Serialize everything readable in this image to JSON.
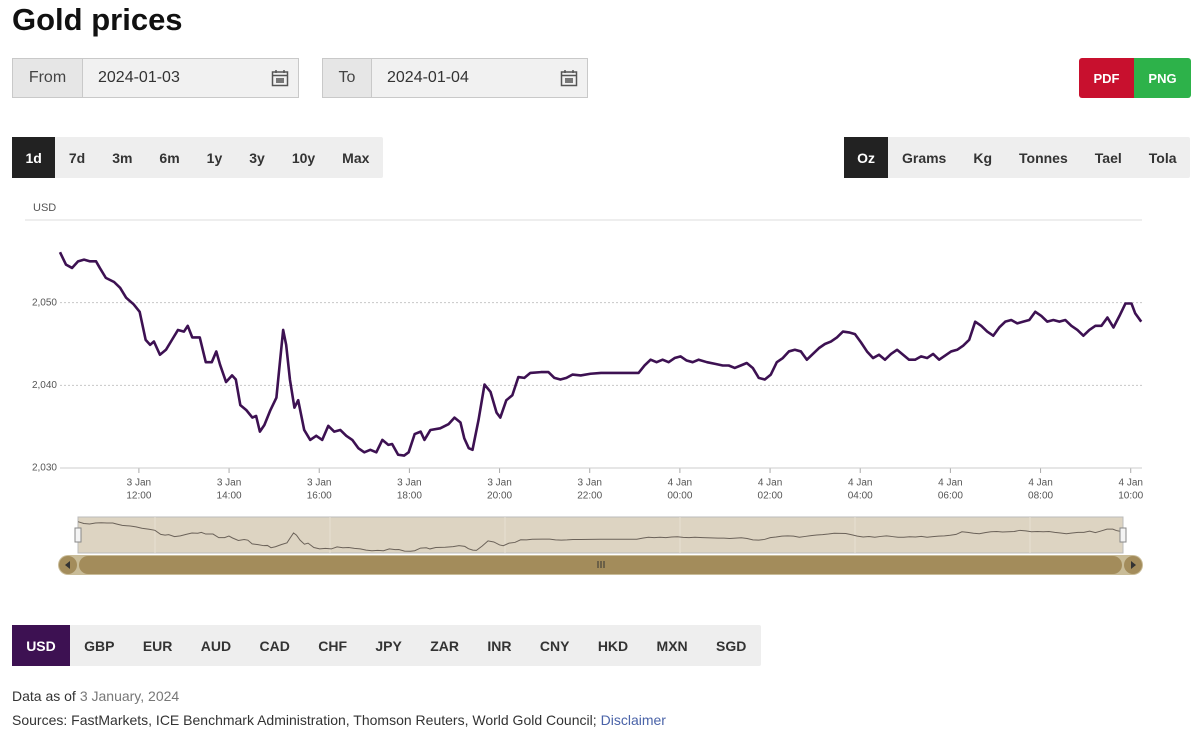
{
  "header": {
    "title": "Gold prices"
  },
  "date_range": {
    "from_label": "From",
    "from_value": "2024-01-03",
    "to_label": "To",
    "to_value": "2024-01-04"
  },
  "export_buttons": [
    "PDF",
    "PNG"
  ],
  "period_tabs": {
    "items": [
      "1d",
      "7d",
      "3m",
      "6m",
      "1y",
      "3y",
      "10y",
      "Max"
    ],
    "active": 0
  },
  "unit_tabs": {
    "items": [
      "Oz",
      "Grams",
      "Kg",
      "Tonnes",
      "Tael",
      "Tola"
    ],
    "active": 0
  },
  "currency_tabs": {
    "items": [
      "USD",
      "GBP",
      "EUR",
      "AUD",
      "CAD",
      "CHF",
      "JPY",
      "ZAR",
      "INR",
      "CNY",
      "HKD",
      "MXN",
      "SGD"
    ],
    "active": 0
  },
  "chart_data": {
    "type": "line",
    "y_label": "USD",
    "color": "#3d1152",
    "grid": true,
    "xlim": [
      "3 Jan 10:15",
      "4 Jan 10:15"
    ],
    "xticks": [
      {
        "value": "3 Jan 12:00",
        "label": [
          "3 Jan",
          "12:00"
        ]
      },
      {
        "value": "3 Jan 14:00",
        "label": [
          "3 Jan",
          "14:00"
        ]
      },
      {
        "value": "3 Jan 16:00",
        "label": [
          "3 Jan",
          "16:00"
        ]
      },
      {
        "value": "3 Jan 18:00",
        "label": [
          "3 Jan",
          "18:00"
        ]
      },
      {
        "value": "3 Jan 20:00",
        "label": [
          "3 Jan",
          "20:00"
        ]
      },
      {
        "value": "3 Jan 22:00",
        "label": [
          "3 Jan",
          "22:00"
        ]
      },
      {
        "value": "4 Jan 00:00",
        "label": [
          "4 Jan",
          "00:00"
        ]
      },
      {
        "value": "4 Jan 02:00",
        "label": [
          "4 Jan",
          "02:00"
        ]
      },
      {
        "value": "4 Jan 04:00",
        "label": [
          "4 Jan",
          "04:00"
        ]
      },
      {
        "value": "4 Jan 06:00",
        "label": [
          "4 Jan",
          "06:00"
        ]
      },
      {
        "value": "4 Jan 08:00",
        "label": [
          "4 Jan",
          "08:00"
        ]
      },
      {
        "value": "4 Jan 10:00",
        "label": [
          "4 Jan",
          "10:00"
        ]
      }
    ],
    "ylim": [
      2030,
      2060
    ],
    "yticks": [
      {
        "value": 2030,
        "label": "2,030"
      },
      {
        "value": 2040,
        "label": "2,040"
      },
      {
        "value": 2050,
        "label": "2,050"
      }
    ],
    "x": [
      "3 Jan 10:15",
      "3 Jan 10:23",
      "3 Jan 10:31",
      "3 Jan 10:39",
      "3 Jan 10:47",
      "3 Jan 10:55",
      "3 Jan 11:03",
      "3 Jan 11:08",
      "3 Jan 11:16",
      "3 Jan 11:27",
      "3 Jan 11:35",
      "3 Jan 11:43",
      "3 Jan 11:53",
      "3 Jan 12:01",
      "3 Jan 12:09",
      "3 Jan 12:15",
      "3 Jan 12:20",
      "3 Jan 12:28",
      "3 Jan 12:36",
      "3 Jan 12:44",
      "3 Jan 12:52",
      "3 Jan 13:00",
      "3 Jan 13:05",
      "3 Jan 13:11",
      "3 Jan 13:21",
      "3 Jan 13:29",
      "3 Jan 13:37",
      "3 Jan 13:43",
      "3 Jan 13:48",
      "3 Jan 13:56",
      "3 Jan 14:04",
      "3 Jan 14:09",
      "3 Jan 14:15",
      "3 Jan 14:23",
      "3 Jan 14:31",
      "3 Jan 14:36",
      "3 Jan 14:41",
      "3 Jan 14:47",
      "3 Jan 14:55",
      "3 Jan 15:03",
      "3 Jan 15:08",
      "3 Jan 15:12",
      "3 Jan 15:16",
      "3 Jan 15:21",
      "3 Jan 15:27",
      "3 Jan 15:32",
      "3 Jan 15:40",
      "3 Jan 15:48",
      "3 Jan 15:56",
      "3 Jan 16:04",
      "3 Jan 16:12",
      "3 Jan 16:20",
      "3 Jan 16:28",
      "3 Jan 16:36",
      "3 Jan 16:44",
      "3 Jan 16:52",
      "3 Jan 17:00",
      "3 Jan 17:08",
      "3 Jan 17:16",
      "3 Jan 17:24",
      "3 Jan 17:32",
      "3 Jan 17:37",
      "3 Jan 17:45",
      "3 Jan 17:53",
      "3 Jan 17:59",
      "3 Jan 18:07",
      "3 Jan 18:15",
      "3 Jan 18:20",
      "3 Jan 18:28",
      "3 Jan 18:41",
      "3 Jan 18:52",
      "3 Jan 19:00",
      "3 Jan 19:08",
      "3 Jan 19:13",
      "3 Jan 19:19",
      "3 Jan 19:24",
      "3 Jan 19:32",
      "3 Jan 19:40",
      "3 Jan 19:48",
      "3 Jan 19:56",
      "3 Jan 20:01",
      "3 Jan 20:09",
      "3 Jan 20:17",
      "3 Jan 20:25",
      "3 Jan 20:33",
      "3 Jan 20:41",
      "3 Jan 20:55",
      "3 Jan 21:05",
      "3 Jan 21:13",
      "3 Jan 21:21",
      "3 Jan 21:29",
      "3 Jan 21:37",
      "3 Jan 21:48",
      "3 Jan 22:01",
      "3 Jan 22:15",
      "3 Jan 22:41",
      "3 Jan 23:05",
      "3 Jan 23:13",
      "3 Jan 23:21",
      "3 Jan 23:29",
      "3 Jan 23:37",
      "3 Jan 23:45",
      "3 Jan 23:53",
      "4 Jan 00:01",
      "4 Jan 00:09",
      "4 Jan 00:17",
      "4 Jan 00:25",
      "4 Jan 00:36",
      "4 Jan 00:47",
      "4 Jan 00:57",
      "4 Jan 01:05",
      "4 Jan 01:13",
      "4 Jan 01:21",
      "4 Jan 01:29",
      "4 Jan 01:37",
      "4 Jan 01:45",
      "4 Jan 01:53",
      "4 Jan 02:01",
      "4 Jan 02:09",
      "4 Jan 02:17",
      "4 Jan 02:25",
      "4 Jan 02:33",
      "4 Jan 02:41",
      "4 Jan 02:49",
      "4 Jan 02:57",
      "4 Jan 03:05",
      "4 Jan 03:13",
      "4 Jan 03:21",
      "4 Jan 03:29",
      "4 Jan 03:37",
      "4 Jan 03:45",
      "4 Jan 03:53",
      "4 Jan 04:01",
      "4 Jan 04:09",
      "4 Jan 04:17",
      "4 Jan 04:25",
      "4 Jan 04:33",
      "4 Jan 04:41",
      "4 Jan 04:49",
      "4 Jan 04:57",
      "4 Jan 05:05",
      "4 Jan 05:13",
      "4 Jan 05:21",
      "4 Jan 05:29",
      "4 Jan 05:37",
      "4 Jan 05:45",
      "4 Jan 05:53",
      "4 Jan 06:01",
      "4 Jan 06:09",
      "4 Jan 06:17",
      "4 Jan 06:25",
      "4 Jan 06:33",
      "4 Jan 06:41",
      "4 Jan 06:49",
      "4 Jan 06:57",
      "4 Jan 07:05",
      "4 Jan 07:13",
      "4 Jan 07:21",
      "4 Jan 07:29",
      "4 Jan 07:37",
      "4 Jan 07:45",
      "4 Jan 07:53",
      "4 Jan 08:01",
      "4 Jan 08:09",
      "4 Jan 08:17",
      "4 Jan 08:25",
      "4 Jan 08:33",
      "4 Jan 08:41",
      "4 Jan 08:49",
      "4 Jan 08:57",
      "4 Jan 09:05",
      "4 Jan 09:13",
      "4 Jan 09:21",
      "4 Jan 09:29",
      "4 Jan 09:37",
      "4 Jan 09:45",
      "4 Jan 09:53",
      "4 Jan 10:01",
      "4 Jan 10:06",
      "4 Jan 10:14"
    ],
    "values": [
      2056.1,
      2054.6,
      2054.2,
      2055.0,
      2055.2,
      2055.0,
      2055.0,
      2054.2,
      2053.0,
      2052.5,
      2051.8,
      2050.6,
      2049.8,
      2048.9,
      2045.5,
      2044.9,
      2045.3,
      2043.7,
      2044.3,
      2045.5,
      2046.7,
      2046.5,
      2047.2,
      2045.8,
      2045.8,
      2042.8,
      2042.8,
      2044.1,
      2042.5,
      2040.4,
      2041.2,
      2040.7,
      2037.6,
      2037.0,
      2036.1,
      2036.3,
      2034.4,
      2035.2,
      2037.0,
      2038.5,
      2043.1,
      2046.7,
      2044.9,
      2040.7,
      2037.3,
      2038.2,
      2034.6,
      2033.4,
      2033.9,
      2033.4,
      2035.1,
      2034.4,
      2034.6,
      2033.9,
      2033.4,
      2032.4,
      2031.9,
      2032.2,
      2031.9,
      2033.4,
      2032.8,
      2032.9,
      2031.6,
      2031.5,
      2031.9,
      2034.1,
      2034.4,
      2033.4,
      2034.6,
      2034.8,
      2035.3,
      2036.1,
      2035.5,
      2033.6,
      2032.4,
      2032.2,
      2035.8,
      2040.1,
      2039.2,
      2036.7,
      2036.1,
      2038.2,
      2038.8,
      2041.0,
      2040.9,
      2041.5,
      2041.6,
      2041.6,
      2040.9,
      2040.7,
      2040.9,
      2041.3,
      2041.2,
      2041.4,
      2041.5,
      2041.5,
      2041.5,
      2042.4,
      2043.1,
      2042.8,
      2043.1,
      2042.8,
      2043.3,
      2043.5,
      2043.0,
      2042.8,
      2043.1,
      2042.8,
      2042.6,
      2042.4,
      2042.4,
      2042.1,
      2042.4,
      2042.7,
      2042.1,
      2040.9,
      2040.7,
      2041.3,
      2042.8,
      2043.3,
      2044.1,
      2044.3,
      2044.1,
      2043.1,
      2043.8,
      2044.5,
      2045.0,
      2045.3,
      2045.8,
      2046.5,
      2046.4,
      2046.2,
      2045.2,
      2044.1,
      2043.3,
      2043.7,
      2043.1,
      2043.8,
      2044.3,
      2043.7,
      2043.1,
      2043.1,
      2043.5,
      2043.3,
      2043.8,
      2043.1,
      2043.6,
      2044.1,
      2044.3,
      2044.8,
      2045.5,
      2047.7,
      2047.2,
      2046.5,
      2046.0,
      2047.0,
      2047.7,
      2047.9,
      2047.5,
      2047.7,
      2047.9,
      2048.9,
      2048.4,
      2047.7,
      2047.9,
      2047.7,
      2047.9,
      2047.2,
      2046.7,
      2046.0,
      2046.7,
      2047.2,
      2047.2,
      2048.2,
      2047.0,
      2048.4,
      2049.9,
      2049.9,
      2048.7,
      2047.7
    ]
  },
  "footer": {
    "as_of_label": "Data as of",
    "as_of_date": "3 January, 2024",
    "sources": "Sources: FastMarkets, ICE Benchmark Administration, Thomson Reuters, World Gold Council;",
    "disclaimer": "Disclaimer"
  }
}
